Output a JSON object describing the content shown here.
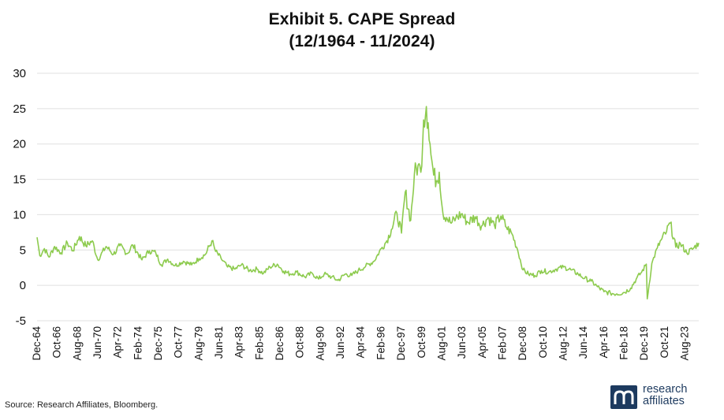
{
  "title": "Exhibit 5. CAPE Spread",
  "subtitle": "(12/1964 - 11/2024)",
  "source": "Source: Research Affiliates, Bloomberg.",
  "logo": {
    "line1": "research",
    "line2": "affiliates",
    "registered": "®",
    "icon": "research-affiliates-logo-mark"
  },
  "colors": {
    "line": "#8DCB4E",
    "grid": "#E0E0E0",
    "text": "#111111",
    "brand": "#1D3A5F"
  },
  "chart_data": {
    "type": "line",
    "title": "Exhibit 5. CAPE Spread",
    "subtitle": "(12/1964 - 11/2024)",
    "xlabel": "",
    "ylabel": "",
    "ylim": [
      -5,
      30
    ],
    "yticks": [
      -5,
      0,
      5,
      10,
      15,
      20,
      25,
      30
    ],
    "grid": true,
    "legend": "none",
    "x_range": [
      "1964-12",
      "2024-11"
    ],
    "xticks": [
      "Dec-64",
      "Oct-66",
      "Aug-68",
      "Jun-70",
      "Apr-72",
      "Feb-74",
      "Dec-75",
      "Oct-77",
      "Aug-79",
      "Jun-81",
      "Apr-83",
      "Feb-85",
      "Dec-86",
      "Oct-88",
      "Aug-90",
      "Jun-92",
      "Apr-94",
      "Feb-96",
      "Dec-97",
      "Oct-99",
      "Aug-01",
      "Jun-03",
      "Apr-05",
      "Feb-07",
      "Dec-08",
      "Oct-10",
      "Aug-12",
      "Jun-14",
      "Apr-16",
      "Feb-18",
      "Dec-19",
      "Oct-21",
      "Aug-23"
    ],
    "series": [
      {
        "values": [
          [
            "1964-12",
            6.8
          ],
          [
            "1965-03",
            4.2
          ],
          [
            "1965-08",
            5.2
          ],
          [
            "1966-01",
            4.0
          ],
          [
            "1966-07",
            5.5
          ],
          [
            "1967-02",
            4.6
          ],
          [
            "1967-09",
            6.0
          ],
          [
            "1968-03",
            4.9
          ],
          [
            "1968-10",
            6.9
          ],
          [
            "1969-05",
            5.6
          ],
          [
            "1969-12",
            6.3
          ],
          [
            "1970-06",
            3.6
          ],
          [
            "1971-03",
            5.5
          ],
          [
            "1971-11",
            4.4
          ],
          [
            "1972-06",
            5.6
          ],
          [
            "1973-02",
            4.5
          ],
          [
            "1973-08",
            5.7
          ],
          [
            "1974-06",
            3.6
          ],
          [
            "1975-02",
            4.9
          ],
          [
            "1975-09",
            4.6
          ],
          [
            "1976-03",
            2.9
          ],
          [
            "1976-10",
            3.7
          ],
          [
            "1977-06",
            2.8
          ],
          [
            "1978-03",
            3.4
          ],
          [
            "1978-12",
            2.9
          ],
          [
            "1979-08",
            3.8
          ],
          [
            "1980-03",
            4.4
          ],
          [
            "1980-10",
            6.3
          ],
          [
            "1981-02",
            4.8
          ],
          [
            "1981-08",
            3.8
          ],
          [
            "1982-03",
            2.6
          ],
          [
            "1982-11",
            2.3
          ],
          [
            "1983-06",
            2.9
          ],
          [
            "1984-03",
            2.1
          ],
          [
            "1984-11",
            2.3
          ],
          [
            "1985-06",
            1.7
          ],
          [
            "1986-01",
            2.6
          ],
          [
            "1986-09",
            3.0
          ],
          [
            "1987-04",
            2.0
          ],
          [
            "1987-11",
            1.6
          ],
          [
            "1988-06",
            1.9
          ],
          [
            "1989-03",
            1.2
          ],
          [
            "1989-11",
            1.7
          ],
          [
            "1990-06",
            0.9
          ],
          [
            "1990-12",
            1.6
          ],
          [
            "1991-08",
            1.2
          ],
          [
            "1992-03",
            0.7
          ],
          [
            "1992-11",
            1.6
          ],
          [
            "1993-06",
            1.4
          ],
          [
            "1994-01",
            2.1
          ],
          [
            "1994-09",
            2.7
          ],
          [
            "1995-06",
            3.4
          ],
          [
            "1996-02",
            5.2
          ],
          [
            "1996-08",
            6.3
          ],
          [
            "1997-01",
            7.9
          ],
          [
            "1997-07",
            10.2
          ],
          [
            "1997-12",
            7.4
          ],
          [
            "1998-04",
            13.2
          ],
          [
            "1998-10",
            9.2
          ],
          [
            "1999-02",
            15.7
          ],
          [
            "1999-06",
            17.0
          ],
          [
            "1999-09",
            16.0
          ],
          [
            "1999-12",
            23.4
          ],
          [
            "2000-03",
            25.3
          ],
          [
            "2000-05",
            23.0
          ],
          [
            "2000-08",
            18.5
          ],
          [
            "2000-11",
            15.6
          ],
          [
            "2001-02",
            14.8
          ],
          [
            "2001-05",
            16.0
          ],
          [
            "2001-09",
            10.2
          ],
          [
            "2002-01",
            9.6
          ],
          [
            "2002-06",
            8.8
          ],
          [
            "2002-11",
            9.5
          ],
          [
            "2003-05",
            10.1
          ],
          [
            "2003-12",
            8.9
          ],
          [
            "2004-08",
            9.7
          ],
          [
            "2005-03",
            8.4
          ],
          [
            "2005-10",
            9.6
          ],
          [
            "2006-05",
            8.5
          ],
          [
            "2006-12",
            9.8
          ],
          [
            "2007-06",
            8.2
          ],
          [
            "2007-12",
            7.3
          ],
          [
            "2008-06",
            5.1
          ],
          [
            "2008-12",
            2.2
          ],
          [
            "2009-06",
            1.6
          ],
          [
            "2010-01",
            1.4
          ],
          [
            "2010-08",
            2.1
          ],
          [
            "2011-04",
            1.9
          ],
          [
            "2011-12",
            2.3
          ],
          [
            "2012-08",
            2.6
          ],
          [
            "2013-04",
            2.2
          ],
          [
            "2013-12",
            1.6
          ],
          [
            "2014-07",
            1.0
          ],
          [
            "2015-02",
            0.6
          ],
          [
            "2015-09",
            -0.2
          ],
          [
            "2016-04",
            -0.9
          ],
          [
            "2016-11",
            -1.1
          ],
          [
            "2017-06",
            -1.2
          ],
          [
            "2018-02",
            -1.0
          ],
          [
            "2018-09",
            -0.4
          ],
          [
            "2019-03",
            0.9
          ],
          [
            "2019-09",
            1.9
          ],
          [
            "2020-02",
            3.0
          ],
          [
            "2020-03",
            -1.9
          ],
          [
            "2020-08",
            3.1
          ],
          [
            "2021-02",
            5.3
          ],
          [
            "2021-07",
            6.6
          ],
          [
            "2021-12",
            7.6
          ],
          [
            "2022-04",
            8.8
          ],
          [
            "2022-10",
            5.4
          ],
          [
            "2023-03",
            5.9
          ],
          [
            "2023-10",
            4.6
          ],
          [
            "2024-04",
            5.1
          ],
          [
            "2024-11",
            6.0
          ]
        ]
      }
    ]
  }
}
